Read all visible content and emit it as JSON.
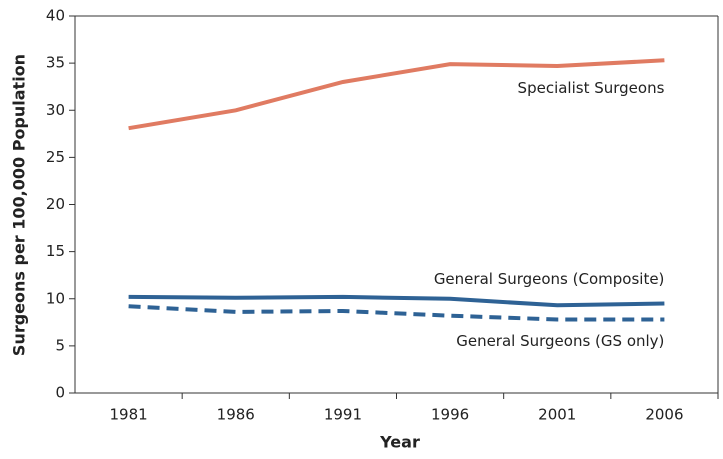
{
  "chart_data": {
    "type": "line",
    "x_label": "Year",
    "y_label": "Surgeons per 100,000 Population",
    "categories": [
      "1981",
      "1986",
      "1991",
      "1996",
      "2001",
      "2006"
    ],
    "series": [
      {
        "name": "Specialist Surgeons",
        "color": "#e07b62",
        "line_style": "solid",
        "values": [
          28.1,
          30.0,
          33.0,
          34.9,
          34.7,
          35.3
        ]
      },
      {
        "name": "General Surgeons (Composite)",
        "color": "#2e6295",
        "line_style": "solid",
        "values": [
          10.2,
          10.1,
          10.2,
          10.0,
          9.3,
          9.5
        ]
      },
      {
        "name": "General Surgeons (GS only)",
        "color": "#2e6295",
        "line_style": "dashed",
        "values": [
          9.2,
          8.6,
          8.7,
          8.2,
          7.8,
          7.8
        ]
      }
    ],
    "ylim": [
      0,
      40
    ],
    "yticks": [
      0,
      5,
      10,
      15,
      20,
      25,
      30,
      35,
      40
    ],
    "grid": false
  }
}
